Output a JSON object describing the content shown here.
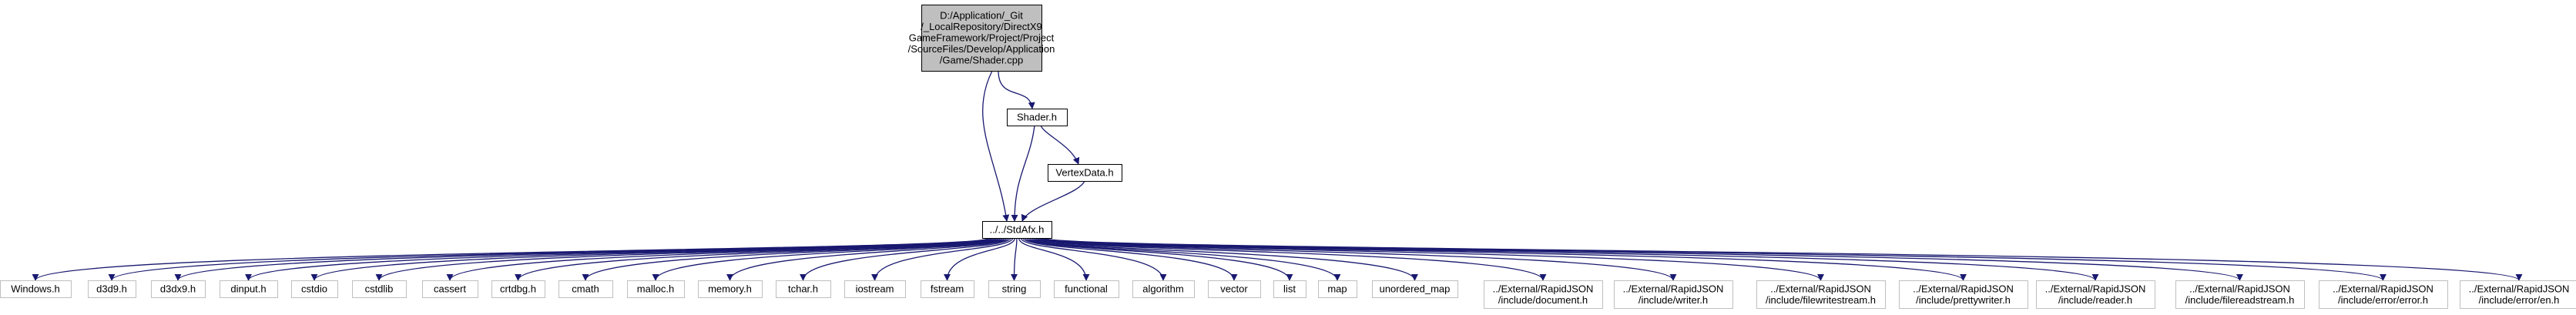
{
  "diagram": {
    "type": "include-dependency-graph",
    "root": {
      "id": "root",
      "lines": [
        "D:/Application/_Git",
        "/_LocalRepository/DirectX9",
        "GameFramework/Project/Project",
        "/SourceFiles/Develop/Application",
        "/Game/Shader.cpp"
      ]
    },
    "shader_h": {
      "id": "shader_h",
      "label": "Shader.h"
    },
    "vertexdata_h": {
      "id": "vertexdata_h",
      "label": "VertexData.h"
    },
    "stdafx_h": {
      "id": "stdafx_h",
      "label": "../../StdAfx.h"
    },
    "leaves": [
      {
        "id": "windows_h",
        "lines": [
          "Windows.h"
        ]
      },
      {
        "id": "d3d9_h",
        "lines": [
          "d3d9.h"
        ]
      },
      {
        "id": "d3dx9_h",
        "lines": [
          "d3dx9.h"
        ]
      },
      {
        "id": "dinput_h",
        "lines": [
          "dinput.h"
        ]
      },
      {
        "id": "cstdio",
        "lines": [
          "cstdio"
        ]
      },
      {
        "id": "cstdlib",
        "lines": [
          "cstdlib"
        ]
      },
      {
        "id": "cassert",
        "lines": [
          "cassert"
        ]
      },
      {
        "id": "crtdbg_h",
        "lines": [
          "crtdbg.h"
        ]
      },
      {
        "id": "cmath",
        "lines": [
          "cmath"
        ]
      },
      {
        "id": "malloc_h",
        "lines": [
          "malloc.h"
        ]
      },
      {
        "id": "memory_h",
        "lines": [
          "memory.h"
        ]
      },
      {
        "id": "tchar_h",
        "lines": [
          "tchar.h"
        ]
      },
      {
        "id": "iostream",
        "lines": [
          "iostream"
        ]
      },
      {
        "id": "fstream",
        "lines": [
          "fstream"
        ]
      },
      {
        "id": "string",
        "lines": [
          "string"
        ]
      },
      {
        "id": "functional",
        "lines": [
          "functional"
        ]
      },
      {
        "id": "algorithm",
        "lines": [
          "algorithm"
        ]
      },
      {
        "id": "vector",
        "lines": [
          "vector"
        ]
      },
      {
        "id": "list",
        "lines": [
          "list"
        ]
      },
      {
        "id": "map",
        "lines": [
          "map"
        ]
      },
      {
        "id": "unordered_map",
        "lines": [
          "unordered_map"
        ]
      },
      {
        "id": "rj_document",
        "lines": [
          "../External/RapidJSON",
          "/include/document.h"
        ]
      },
      {
        "id": "rj_writer",
        "lines": [
          "../External/RapidJSON",
          "/include/writer.h"
        ]
      },
      {
        "id": "rj_filewritestream",
        "lines": [
          "../External/RapidJSON",
          "/include/filewritestream.h"
        ]
      },
      {
        "id": "rj_prettywriter",
        "lines": [
          "../External/RapidJSON",
          "/include/prettywriter.h"
        ]
      },
      {
        "id": "rj_reader",
        "lines": [
          "../External/RapidJSON",
          "/include/reader.h"
        ]
      },
      {
        "id": "rj_filereadstream",
        "lines": [
          "../External/RapidJSON",
          "/include/filereadstream.h"
        ]
      },
      {
        "id": "rj_error",
        "lines": [
          "../External/RapidJSON",
          "/include/error/error.h"
        ]
      },
      {
        "id": "rj_error_en",
        "lines": [
          "../External/RapidJSON",
          "/include/error/en.h"
        ]
      }
    ],
    "edges": [
      [
        "root",
        "stdafx_h"
      ],
      [
        "root",
        "shader_h"
      ],
      [
        "shader_h",
        "stdafx_h"
      ],
      [
        "shader_h",
        "vertexdata_h"
      ],
      [
        "vertexdata_h",
        "stdafx_h"
      ]
    ],
    "colors": {
      "root_fill": "#bfbfbf",
      "node_fill": "#ffffff",
      "leaf_border": "#bfbfbf",
      "node_border": "#000000",
      "edge": "#191970",
      "text": "#000000"
    }
  }
}
